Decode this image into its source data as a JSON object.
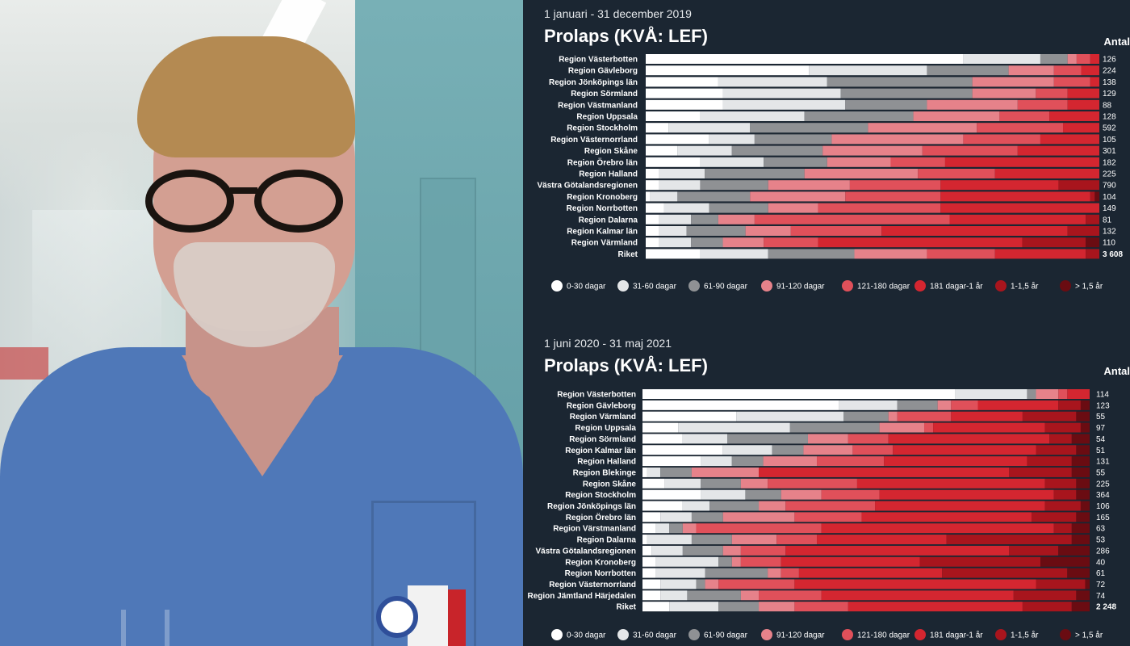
{
  "colors": {
    "segments": [
      "#ffffff",
      "#e4e6e8",
      "#8f9194",
      "#e6828a",
      "#e0505a",
      "#d42630",
      "#a8151d",
      "#6a0c12"
    ],
    "background": "#1b2632",
    "text": "#ffffff"
  },
  "chart_data": [
    {
      "type": "bar",
      "stacked": "percent",
      "orientation": "horizontal",
      "period": "1 januari - 31 december 2019",
      "title": "Prolaps (KVÅ: LEF)",
      "count_header": "Antal",
      "legend": [
        "0-30 dagar",
        "31-60 dagar",
        "61-90 dagar",
        "91-120 dagar",
        "121-180 dagar",
        "181 dagar-1 år",
        "1-1,5 år",
        "> 1,5 år"
      ],
      "legend_position": "bottom",
      "categories": [
        "Region Västerbotten",
        "Region Gävleborg",
        "Region Jönköpings län",
        "Region Sörmland",
        "Region Västmanland",
        "Region Uppsala",
        "Region Stockholm",
        "Region Västernorrland",
        "Region Skåne",
        "Region Örebro län",
        "Region Halland",
        "Västra Götalandsregionen",
        "Region Kronoberg",
        "Region Norrbotten",
        "Region Dalarna",
        "Region Kalmar län",
        "Region Värmland",
        "Riket"
      ],
      "counts": [
        "126",
        "224",
        "138",
        "129",
        "88",
        "128",
        "592",
        "105",
        "301",
        "182",
        "225",
        "790",
        "104",
        "149",
        "81",
        "132",
        "110",
        "3 608"
      ],
      "series": [
        {
          "name": "0-30 dagar",
          "values": [
            70,
            36,
            16,
            17,
            17,
            12,
            5,
            14,
            7,
            12,
            3,
            3,
            1,
            4,
            3,
            3,
            3,
            12
          ]
        },
        {
          "name": "31-60 dagar",
          "values": [
            17,
            26,
            24,
            26,
            27,
            23,
            18,
            10,
            12,
            14,
            10,
            9,
            6,
            10,
            7,
            6,
            7,
            15
          ]
        },
        {
          "name": "61-90 dagar",
          "values": [
            6,
            18,
            32,
            29,
            18,
            24,
            26,
            17,
            20,
            14,
            22,
            15,
            16,
            13,
            6,
            13,
            7,
            19
          ]
        },
        {
          "name": "91-120 dagar",
          "values": [
            2,
            10,
            18,
            14,
            20,
            19,
            24,
            29,
            22,
            14,
            25,
            18,
            21,
            11,
            8,
            10,
            9,
            16
          ]
        },
        {
          "name": "121-180 dagar",
          "values": [
            3,
            6,
            8,
            7,
            11,
            11,
            19,
            17,
            21,
            12,
            17,
            20,
            21,
            27,
            43,
            20,
            12,
            15
          ]
        },
        {
          "name": "181 dagar-1 år",
          "values": [
            2,
            4,
            2,
            7,
            7,
            11,
            8,
            13,
            18,
            34,
            23,
            26,
            33,
            35,
            30,
            41,
            45,
            20
          ]
        },
        {
          "name": "1-1,5 år",
          "values": [
            0,
            0,
            0,
            0,
            0,
            0,
            0,
            0,
            0,
            0,
            0,
            9,
            1,
            0,
            3,
            7,
            14,
            3
          ]
        },
        {
          "name": "> 1,5 år",
          "values": [
            0,
            0,
            0,
            0,
            0,
            0,
            0,
            0,
            0,
            0,
            0,
            0,
            1,
            0,
            0,
            0,
            3,
            0
          ]
        }
      ],
      "xlim": [
        0,
        100
      ]
    },
    {
      "type": "bar",
      "stacked": "percent",
      "orientation": "horizontal",
      "period": "1 juni 2020 - 31 maj 2021",
      "title": "Prolaps (KVÅ: LEF)",
      "count_header": "Antal",
      "legend": [
        "0-30 dagar",
        "31-60 dagar",
        "61-90 dagar",
        "91-120 dagar",
        "121-180 dagar",
        "181 dagar-1 år",
        "1-1,5 år",
        "> 1,5 år"
      ],
      "legend_position": "bottom",
      "categories": [
        "Region Västerbotten",
        "Region Gävleborg",
        "Region Värmland",
        "Region Uppsala",
        "Region Sörmland",
        "Region Kalmar län",
        "Region Halland",
        "Region Blekinge",
        "Region Skåne",
        "Region Stockholm",
        "Region Jönköpings län",
        "Region Örebro län",
        "Region Värstmanland",
        "Region Dalarna",
        "Västra Götalandsregionen",
        "Region Kronoberg",
        "Region Norrbotten",
        "Region Västernorrland",
        "Region Jämtland Härjedalen",
        "Riket"
      ],
      "counts": [
        "114",
        "123",
        "55",
        "97",
        "54",
        "51",
        "131",
        "55",
        "225",
        "364",
        "106",
        "165",
        "63",
        "53",
        "286",
        "40",
        "61",
        "72",
        "74",
        "2 248"
      ],
      "series": [
        {
          "name": "0-30 dagar",
          "values": [
            70,
            44,
            21,
            8,
            9,
            18,
            13,
            1,
            5,
            13,
            9,
            4,
            3,
            1,
            2,
            3,
            3,
            4,
            4,
            6
          ]
        },
        {
          "name": "31-60 dagar",
          "values": [
            16,
            13,
            24,
            25,
            10,
            11,
            7,
            3,
            8,
            10,
            6,
            7,
            3,
            10,
            7,
            14,
            11,
            8,
            6,
            11
          ]
        },
        {
          "name": "61-90 dagar",
          "values": [
            2,
            9,
            10,
            20,
            18,
            7,
            7,
            7,
            9,
            8,
            11,
            7,
            3,
            9,
            9,
            3,
            14,
            2,
            12,
            9
          ]
        },
        {
          "name": "91-120 dagar",
          "values": [
            5,
            3,
            2,
            10,
            9,
            11,
            12,
            15,
            6,
            9,
            6,
            16,
            3,
            10,
            4,
            2,
            3,
            3,
            4,
            8
          ]
        },
        {
          "name": "121-180 dagar",
          "values": [
            2,
            6,
            12,
            2,
            9,
            9,
            15,
            0,
            20,
            13,
            20,
            15,
            28,
            9,
            10,
            9,
            4,
            17,
            14,
            12
          ]
        },
        {
          "name": "181 dagar-1 år",
          "values": [
            5,
            18,
            16,
            25,
            36,
            32,
            32,
            56,
            42,
            39,
            38,
            38,
            52,
            29,
            50,
            31,
            32,
            54,
            43,
            39
          ]
        },
        {
          "name": "1-1,5 år",
          "values": [
            0,
            5,
            12,
            8,
            5,
            9,
            10,
            14,
            7,
            5,
            8,
            10,
            4,
            28,
            11,
            27,
            28,
            11,
            14,
            11
          ]
        },
        {
          "name": "> 1,5 år",
          "values": [
            0,
            2,
            3,
            2,
            4,
            3,
            4,
            4,
            3,
            3,
            2,
            3,
            4,
            4,
            7,
            11,
            5,
            1,
            3,
            4
          ]
        }
      ],
      "xlim": [
        0,
        100
      ]
    }
  ]
}
